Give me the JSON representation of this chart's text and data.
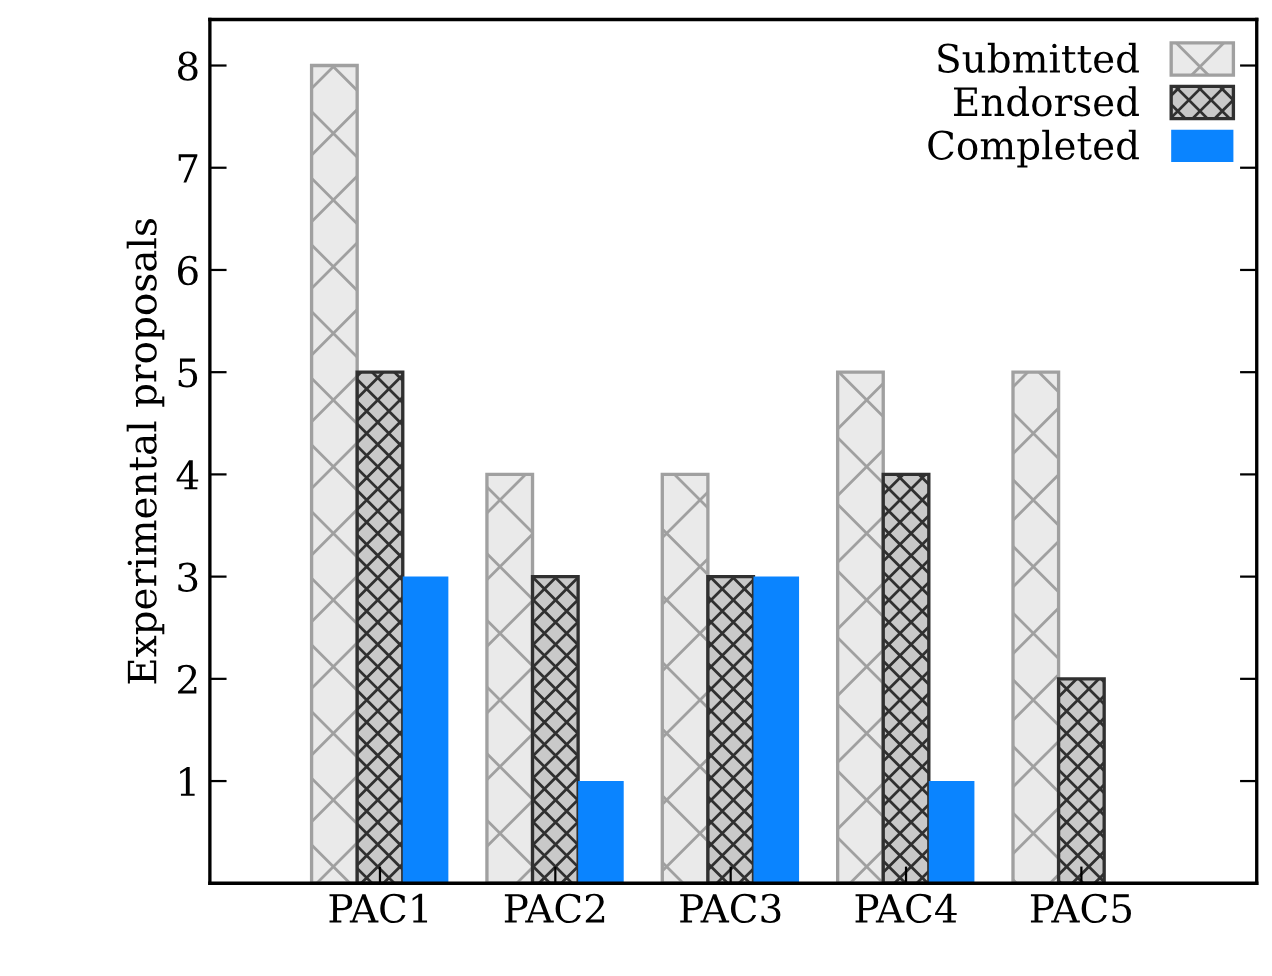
{
  "chart_data": {
    "type": "bar",
    "ylabel": "Experimental proposals",
    "categories": [
      "PAC1",
      "PAC2",
      "PAC3",
      "PAC4",
      "PAC5"
    ],
    "series": [
      {
        "name": "Submitted",
        "color": "#a0a0a0",
        "values": [
          8,
          4,
          4,
          5,
          5
        ]
      },
      {
        "name": "Endorsed",
        "color": "#303030",
        "values": [
          5,
          3,
          3,
          4,
          2
        ]
      },
      {
        "name": "Completed",
        "color": "#0a84ff",
        "values": [
          3,
          1,
          3,
          1,
          0
        ]
      }
    ],
    "ylim": [
      0,
      8.45
    ],
    "yticks": [
      1,
      2,
      3,
      4,
      5,
      6,
      7,
      8
    ],
    "grid": false,
    "legend": "top right"
  }
}
